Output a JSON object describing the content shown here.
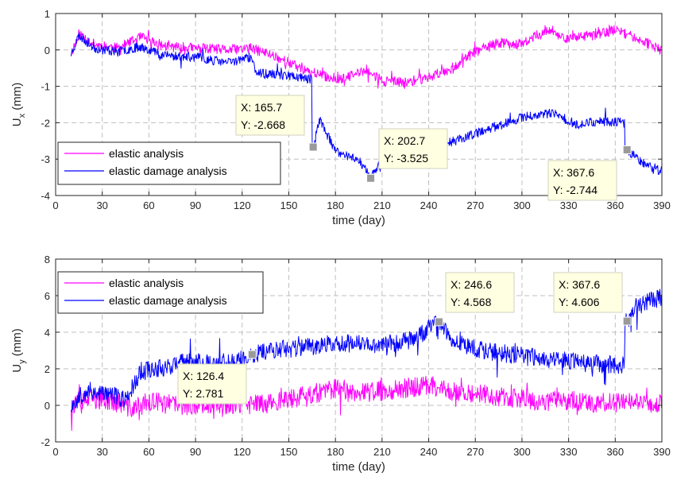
{
  "colors": {
    "elastic": "#ff00ff",
    "damage": "#0000ff",
    "grid": "#bfbfbf",
    "tip_bg": "#ffffe1",
    "marker": "#9a9a9a"
  },
  "chart_data": [
    {
      "type": "line",
      "xlabel": "time (day)",
      "ylabel_main": "U",
      "ylabel_sub": "x",
      "ylabel_unit": " (mm)",
      "xlim": [
        0,
        390
      ],
      "ylim": [
        -4,
        1
      ],
      "xticks": [
        0,
        30,
        60,
        90,
        120,
        150,
        180,
        210,
        240,
        270,
        300,
        330,
        360,
        390
      ],
      "yticks": [
        -4,
        -3,
        -2,
        -1,
        0,
        1
      ],
      "grid": true,
      "legend_position": "bottom-left",
      "series": [
        {
          "name": "elastic analysis",
          "color_key": "elastic",
          "seed": 11,
          "noise": 0.14,
          "points": [
            [
              10,
              -0.1
            ],
            [
              15,
              0.45
            ],
            [
              25,
              0.15
            ],
            [
              40,
              0.05
            ],
            [
              55,
              0.35
            ],
            [
              70,
              0.1
            ],
            [
              90,
              0.05
            ],
            [
              110,
              0.0
            ],
            [
              125,
              0.05
            ],
            [
              140,
              -0.15
            ],
            [
              160,
              -0.55
            ],
            [
              175,
              -0.75
            ],
            [
              185,
              -0.8
            ],
            [
              200,
              -0.55
            ],
            [
              210,
              -0.85
            ],
            [
              225,
              -0.9
            ],
            [
              240,
              -0.75
            ],
            [
              255,
              -0.5
            ],
            [
              270,
              -0.05
            ],
            [
              285,
              0.2
            ],
            [
              300,
              0.15
            ],
            [
              315,
              0.55
            ],
            [
              330,
              0.3
            ],
            [
              345,
              0.4
            ],
            [
              360,
              0.55
            ],
            [
              370,
              0.4
            ],
            [
              380,
              0.2
            ],
            [
              390,
              -0.05
            ]
          ]
        },
        {
          "name": "elastic damage analysis",
          "color_key": "damage",
          "seed": 23,
          "noise": 0.13,
          "points": [
            [
              10,
              -0.1
            ],
            [
              15,
              0.4
            ],
            [
              25,
              0.05
            ],
            [
              40,
              -0.05
            ],
            [
              55,
              0.1
            ],
            [
              70,
              -0.15
            ],
            [
              90,
              -0.2
            ],
            [
              110,
              -0.35
            ],
            [
              125,
              -0.2
            ],
            [
              130,
              -0.65
            ],
            [
              150,
              -0.7
            ],
            [
              164,
              -0.8
            ],
            [
              165.7,
              -2.668
            ],
            [
              170,
              -1.9
            ],
            [
              180,
              -2.8
            ],
            [
              195,
              -3.0
            ],
            [
              202.7,
              -3.525
            ],
            [
              212,
              -2.9
            ],
            [
              230,
              -2.85
            ],
            [
              250,
              -2.6
            ],
            [
              270,
              -2.3
            ],
            [
              290,
              -2.0
            ],
            [
              305,
              -1.8
            ],
            [
              320,
              -1.75
            ],
            [
              335,
              -2.05
            ],
            [
              350,
              -1.95
            ],
            [
              365,
              -2.0
            ],
            [
              367.6,
              -2.744
            ],
            [
              375,
              -3.0
            ],
            [
              385,
              -3.3
            ],
            [
              390,
              -3.3
            ]
          ]
        }
      ],
      "datatips": [
        {
          "x": 165.7,
          "y": -2.668,
          "x_text": "X: 165.7",
          "y_text": "Y: -2.668"
        },
        {
          "x": 202.7,
          "y": -3.525,
          "x_text": "X: 202.7",
          "y_text": "Y: -3.525"
        },
        {
          "x": 367.6,
          "y": -2.744,
          "x_text": "X: 367.6",
          "y_text": "Y: -2.744"
        }
      ]
    },
    {
      "type": "line",
      "xlabel": "time (day)",
      "ylabel_main": "U",
      "ylabel_sub": "y",
      "ylabel_unit": " (mm)",
      "xlim": [
        0,
        390
      ],
      "ylim": [
        -2,
        8
      ],
      "xticks": [
        0,
        30,
        60,
        90,
        120,
        150,
        180,
        210,
        240,
        270,
        300,
        330,
        360,
        390
      ],
      "yticks": [
        -2,
        0,
        2,
        4,
        6,
        8
      ],
      "grid": true,
      "legend_position": "top-left",
      "series": [
        {
          "name": "elastic analysis",
          "color_key": "elastic",
          "seed": 37,
          "noise": 0.55,
          "points": [
            [
              10,
              0.0
            ],
            [
              20,
              0.3
            ],
            [
              35,
              0.3
            ],
            [
              50,
              -0.2
            ],
            [
              60,
              0.2
            ],
            [
              80,
              0.0
            ],
            [
              100,
              0.1
            ],
            [
              120,
              0.0
            ],
            [
              140,
              0.2
            ],
            [
              160,
              0.5
            ],
            [
              180,
              0.9
            ],
            [
              200,
              0.7
            ],
            [
              220,
              0.9
            ],
            [
              240,
              1.1
            ],
            [
              255,
              0.8
            ],
            [
              270,
              0.7
            ],
            [
              290,
              0.4
            ],
            [
              310,
              0.2
            ],
            [
              330,
              0.3
            ],
            [
              350,
              0.1
            ],
            [
              365,
              0.2
            ],
            [
              375,
              0.2
            ],
            [
              390,
              0.1
            ]
          ]
        },
        {
          "name": "elastic damage analysis",
          "color_key": "damage",
          "seed": 53,
          "noise": 0.5,
          "points": [
            [
              10,
              0.0
            ],
            [
              20,
              0.8
            ],
            [
              35,
              0.6
            ],
            [
              45,
              0.3
            ],
            [
              55,
              1.9
            ],
            [
              70,
              2.1
            ],
            [
              85,
              2.4
            ],
            [
              100,
              2.3
            ],
            [
              115,
              2.4
            ],
            [
              125,
              2.6
            ],
            [
              126.4,
              2.781
            ],
            [
              135,
              3.0
            ],
            [
              150,
              3.1
            ],
            [
              170,
              3.3
            ],
            [
              190,
              3.4
            ],
            [
              210,
              3.3
            ],
            [
              230,
              3.6
            ],
            [
              246.6,
              4.568
            ],
            [
              255,
              3.5
            ],
            [
              275,
              3.0
            ],
            [
              300,
              2.7
            ],
            [
              320,
              2.5
            ],
            [
              345,
              2.3
            ],
            [
              365,
              2.2
            ],
            [
              367.6,
              4.606
            ],
            [
              372,
              5.3
            ],
            [
              380,
              5.7
            ],
            [
              390,
              5.9
            ]
          ]
        }
      ],
      "datatips": [
        {
          "x": 126.4,
          "y": 2.781,
          "x_text": "X: 126.4",
          "y_text": "Y: 2.781"
        },
        {
          "x": 246.6,
          "y": 4.568,
          "x_text": "X: 246.6",
          "y_text": "Y: 4.568"
        },
        {
          "x": 367.6,
          "y": 4.606,
          "x_text": "X: 367.6",
          "y_text": "Y: 4.606"
        }
      ]
    }
  ]
}
